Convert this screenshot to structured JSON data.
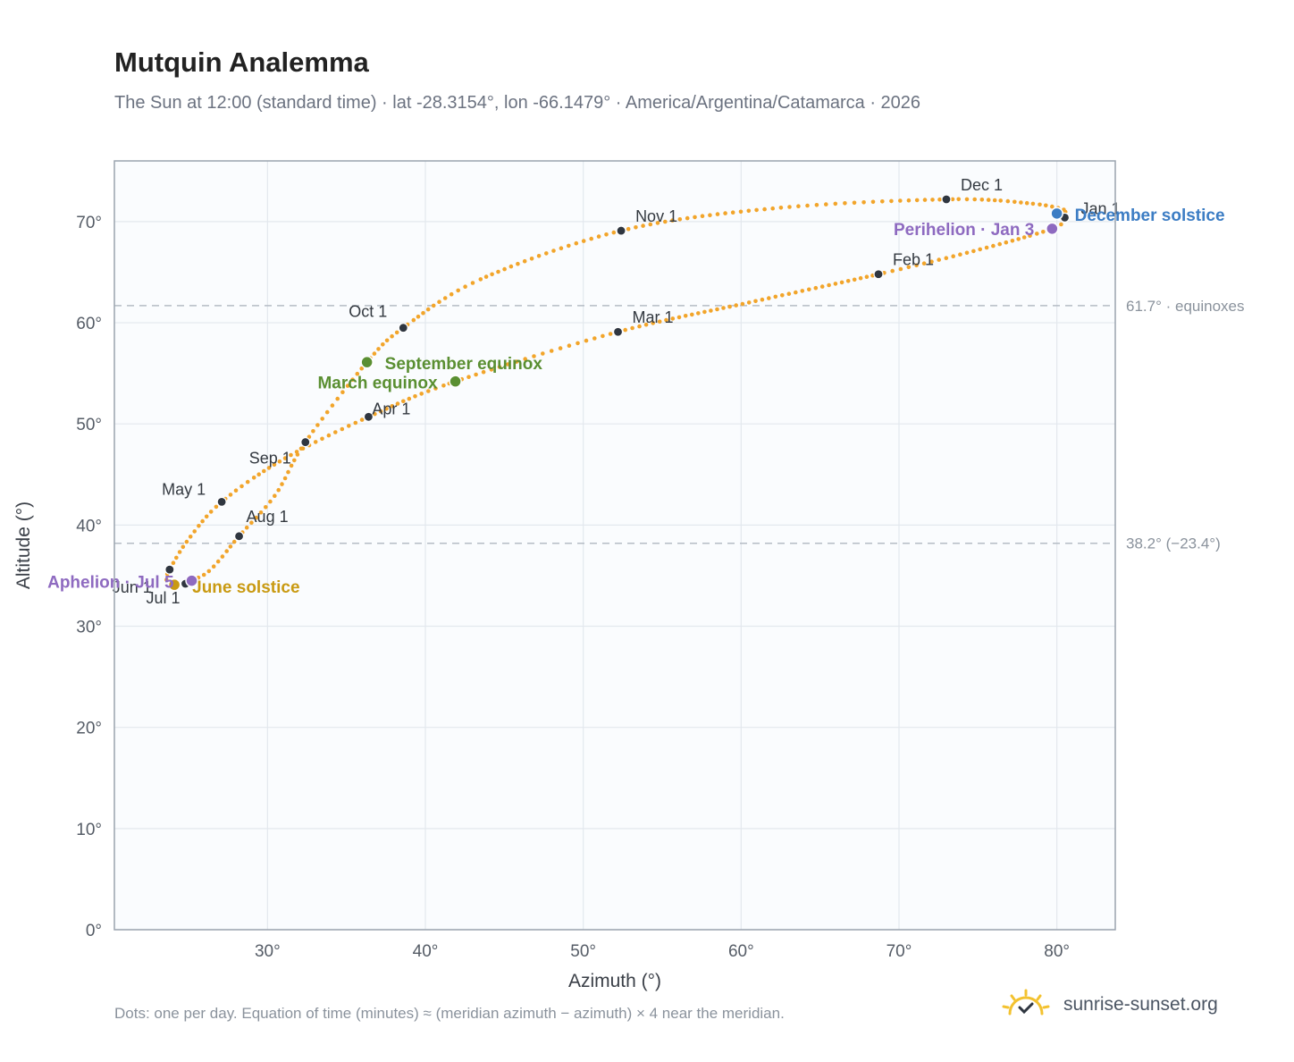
{
  "header": {
    "title": "Mutquin Analemma",
    "subtitle": "The Sun at 12:00 (standard time) · lat -28.3154°, lon -66.1479° · America/Argentina/Catamarca · 2026"
  },
  "footer": {
    "note": "Dots: one per day. Equation of time (minutes) ≈ (meridian azimuth − azimuth) × 4 near the meridian.",
    "brand": "sunrise-sunset.org"
  },
  "colors": {
    "path": "#f2a52b",
    "month_dot": "#2f3640",
    "equinox": "#5a8f32",
    "solstice_june": "#c99a12",
    "solstice_december": "#3c7dc4",
    "apsis": "#8e6ac0",
    "refline": "#b5bcc5",
    "plot_bg": "#fafcfe",
    "grid": "#e3e8ee",
    "frame": "#9aa3ae",
    "brand_icon": "#f3c230"
  },
  "chart_data": {
    "type": "scatter",
    "xlabel": "Azimuth (°)",
    "ylabel": "Altitude (°)",
    "xlim": [
      20.3,
      83.7
    ],
    "ylim": [
      0,
      76
    ],
    "xticks": [
      30,
      40,
      50,
      60,
      70,
      80
    ],
    "yticks": [
      0,
      10,
      20,
      30,
      40,
      50,
      60,
      70
    ],
    "xtick_labels": [
      "30°",
      "40°",
      "50°",
      "60°",
      "70°",
      "80°"
    ],
    "ytick_labels": [
      "0°",
      "10°",
      "20°",
      "30°",
      "40°",
      "50°",
      "60°",
      "70°"
    ],
    "grid": true,
    "daily_path": [
      {
        "date": "Dec 21",
        "x": 80.0,
        "y": 70.8
      },
      {
        "date": "Jan 1",
        "x": 80.5,
        "y": 70.4
      },
      {
        "date": "Jan 3",
        "x": 79.7,
        "y": 69.3
      },
      {
        "date": "Jan 15",
        "x": 75.0,
        "y": 67.2
      },
      {
        "date": "Feb 1",
        "x": 68.7,
        "y": 64.8
      },
      {
        "date": "Feb 15",
        "x": 60.5,
        "y": 62.0
      },
      {
        "date": "Mar 1",
        "x": 52.2,
        "y": 59.1
      },
      {
        "date": "Mar 20",
        "x": 41.9,
        "y": 54.2
      },
      {
        "date": "Apr 1",
        "x": 36.4,
        "y": 50.7
      },
      {
        "date": "Apr 15",
        "x": 31.0,
        "y": 46.5
      },
      {
        "date": "May 1",
        "x": 27.1,
        "y": 42.3
      },
      {
        "date": "May 15",
        "x": 25.0,
        "y": 38.6
      },
      {
        "date": "Jun 1",
        "x": 23.8,
        "y": 35.6
      },
      {
        "date": "Jun 10",
        "x": 23.6,
        "y": 34.6
      },
      {
        "date": "Jun 21",
        "x": 24.1,
        "y": 34.1
      },
      {
        "date": "Jul 1",
        "x": 24.8,
        "y": 34.2
      },
      {
        "date": "Jul 5",
        "x": 25.2,
        "y": 34.5
      },
      {
        "date": "Jul 15",
        "x": 26.4,
        "y": 35.6
      },
      {
        "date": "Aug 1",
        "x": 28.2,
        "y": 38.9
      },
      {
        "date": "Aug 15",
        "x": 30.5,
        "y": 43.0
      },
      {
        "date": "Sep 1",
        "x": 32.4,
        "y": 48.2
      },
      {
        "date": "Sep 23",
        "x": 36.3,
        "y": 56.1
      },
      {
        "date": "Oct 1",
        "x": 38.6,
        "y": 59.5
      },
      {
        "date": "Oct 15",
        "x": 43.5,
        "y": 64.3
      },
      {
        "date": "Nov 1",
        "x": 52.4,
        "y": 69.1
      },
      {
        "date": "Nov 15",
        "x": 62.0,
        "y": 71.3
      },
      {
        "date": "Dec 1",
        "x": 73.0,
        "y": 72.2
      },
      {
        "date": "Dec 12",
        "x": 78.3,
        "y": 71.8
      },
      {
        "date": "Dec 18",
        "x": 80.6,
        "y": 71.1
      },
      {
        "date": "Dec 21",
        "x": 80.0,
        "y": 70.8
      }
    ],
    "month_markers": [
      {
        "label": "Jan 1",
        "x": 80.5,
        "y": 70.4
      },
      {
        "label": "Feb 1",
        "x": 68.7,
        "y": 64.8
      },
      {
        "label": "Mar 1",
        "x": 52.2,
        "y": 59.1
      },
      {
        "label": "Apr 1",
        "x": 36.4,
        "y": 50.7
      },
      {
        "label": "May 1",
        "x": 27.1,
        "y": 42.3
      },
      {
        "label": "Jun 1",
        "x": 23.8,
        "y": 35.6
      },
      {
        "label": "Jul 1",
        "x": 24.8,
        "y": 34.2
      },
      {
        "label": "Aug 1",
        "x": 28.2,
        "y": 38.9
      },
      {
        "label": "Sep 1",
        "x": 32.4,
        "y": 48.2
      },
      {
        "label": "Oct 1",
        "x": 38.6,
        "y": 59.5
      },
      {
        "label": "Nov 1",
        "x": 52.4,
        "y": 69.1
      },
      {
        "label": "Dec 1",
        "x": 73.0,
        "y": 72.2
      }
    ],
    "events": [
      {
        "label": "March equinox",
        "kind": "equinox",
        "x": 41.9,
        "y": 54.2
      },
      {
        "label": "September equinox",
        "kind": "equinox",
        "x": 36.3,
        "y": 56.1
      },
      {
        "label": "June solstice",
        "kind": "solstice_june",
        "x": 24.1,
        "y": 34.1
      },
      {
        "label": "December solstice",
        "kind": "solstice_december",
        "x": 80.0,
        "y": 70.8
      },
      {
        "label": "Perihelion · Jan 3",
        "kind": "apsis",
        "x": 79.7,
        "y": 69.3
      },
      {
        "label": "Aphelion · Jul 5",
        "kind": "apsis",
        "x": 25.2,
        "y": 34.5
      }
    ],
    "reference_lines": [
      {
        "label": "61.7° · equinoxes",
        "y": 61.7
      },
      {
        "label": "38.2° (−23.4°)",
        "y": 38.2
      }
    ]
  }
}
